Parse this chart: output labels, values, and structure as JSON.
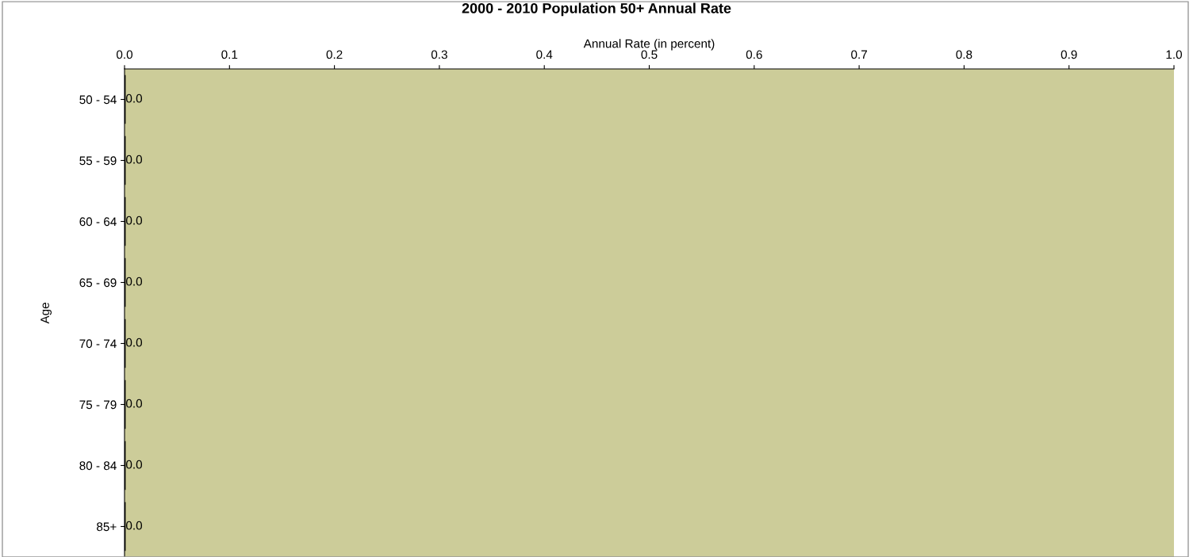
{
  "chart_data": {
    "type": "bar",
    "orientation": "horizontal",
    "title": "2000 - 2010 Population 50+ Annual Rate",
    "xlabel": "Annual Rate (in percent)",
    "ylabel": "Age",
    "categories": [
      "50 - 54",
      "55 - 59",
      "60 - 64",
      "65 - 69",
      "70 - 74",
      "75 - 79",
      "80 - 84",
      "85+"
    ],
    "values": [
      0.0,
      0.0,
      0.0,
      0.0,
      0.0,
      0.0,
      0.0,
      0.0
    ],
    "color": "#000000",
    "value_labels": [
      "0.0",
      "0.0",
      "0.0",
      "0.0",
      "0.0",
      "0.0",
      "0.0",
      "0.0"
    ],
    "xlim": [
      0,
      1
    ],
    "xticks": [
      {
        "value": 0,
        "label": "0.0"
      },
      0.1,
      0.2,
      0.3,
      0.4,
      0.5,
      0.6,
      0.7,
      0.8,
      0.9,
      {
        "value": 1,
        "label": "1.0"
      }
    ],
    "grid": false,
    "legend": false
  }
}
